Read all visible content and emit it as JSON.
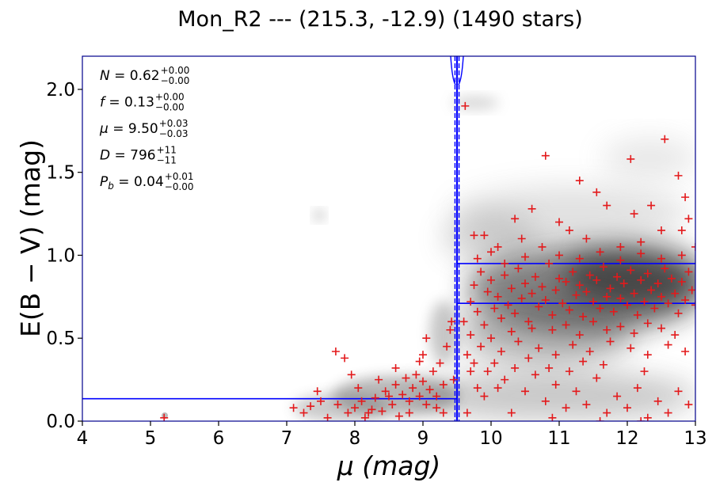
{
  "chart_data": {
    "type": "scatter",
    "title": "Mon_R2 --- (215.3, -12.9) (1490 stars)",
    "xlabel": "μ (mag)",
    "ylabel": "E(B − V) (mag)",
    "xlim": [
      4,
      13
    ],
    "ylim": [
      0,
      2.2
    ],
    "xticks": [
      "4",
      "5",
      "6",
      "7",
      "8",
      "9",
      "10",
      "11",
      "12",
      "13"
    ],
    "yticks": [
      "0.0",
      "0.5",
      "1.0",
      "1.5",
      "2.0"
    ],
    "grid": false,
    "colors": {
      "points": "#e31a1c",
      "model": "#0000ff",
      "density": "#000000"
    },
    "annotations": [
      {
        "label": "N",
        "value": "0.62",
        "sup": "+0.00",
        "sub": "−0.00"
      },
      {
        "label": "f",
        "value": "0.13",
        "sup": "+0.00",
        "sub": "−0.00"
      },
      {
        "label": "μ",
        "value": "9.50",
        "sup": "+0.03",
        "sub": "−0.03"
      },
      {
        "label": "D",
        "value": "796",
        "sup": "+11",
        "sub": "−11"
      },
      {
        "label": "P_b",
        "value": "0.04",
        "sup": "+0.01",
        "sub": "−0.00"
      }
    ],
    "model_lines": {
      "cloud_distance": 9.5,
      "cloud_distance_bounds": [
        9.47,
        9.53
      ],
      "foreground_reddening": 0.135,
      "background_reddening_bounds": [
        0.71,
        0.95
      ]
    },
    "points": [
      [
        5.2,
        0.02
      ],
      [
        7.45,
        0.18
      ],
      [
        7.5,
        0.12
      ],
      [
        7.72,
        0.42
      ],
      [
        7.85,
        0.38
      ],
      [
        7.1,
        0.08
      ],
      [
        7.25,
        0.05
      ],
      [
        7.35,
        0.09
      ],
      [
        7.6,
        0.02
      ],
      [
        7.75,
        0.1
      ],
      [
        7.9,
        0.05
      ],
      [
        8.0,
        0.08
      ],
      [
        8.1,
        0.12
      ],
      [
        8.15,
        0.02
      ],
      [
        8.25,
        0.07
      ],
      [
        8.3,
        0.14
      ],
      [
        8.4,
        0.06
      ],
      [
        8.45,
        0.18
      ],
      [
        8.55,
        0.1
      ],
      [
        8.6,
        0.22
      ],
      [
        8.65,
        0.03
      ],
      [
        8.7,
        0.16
      ],
      [
        8.75,
        0.26
      ],
      [
        8.8,
        0.12
      ],
      [
        8.85,
        0.2
      ],
      [
        8.9,
        0.28
      ],
      [
        8.95,
        0.15
      ],
      [
        9.0,
        0.24
      ],
      [
        9.05,
        0.1
      ],
      [
        9.1,
        0.19
      ],
      [
        9.15,
        0.3
      ],
      [
        9.2,
        0.08
      ],
      [
        9.25,
        0.35
      ],
      [
        9.3,
        0.22
      ],
      [
        9.35,
        0.45
      ],
      [
        9.4,
        0.55
      ],
      [
        9.0,
        0.4
      ],
      [
        9.05,
        0.5
      ],
      [
        8.95,
        0.36
      ],
      [
        9.42,
        0.6
      ],
      [
        8.05,
        0.2
      ],
      [
        8.2,
        0.05
      ],
      [
        8.35,
        0.25
      ],
      [
        8.5,
        0.15
      ],
      [
        8.8,
        0.05
      ],
      [
        9.2,
        0.15
      ],
      [
        9.3,
        0.05
      ],
      [
        9.45,
        0.25
      ],
      [
        7.95,
        0.28
      ],
      [
        8.6,
        0.32
      ],
      [
        9.62,
        1.9
      ],
      [
        10.6,
        1.28
      ],
      [
        10.8,
        1.6
      ],
      [
        11.3,
        1.45
      ],
      [
        11.55,
        1.38
      ],
      [
        12.05,
        1.58
      ],
      [
        12.1,
        1.25
      ],
      [
        12.55,
        1.7
      ],
      [
        12.75,
        1.48
      ],
      [
        12.8,
        1.15
      ],
      [
        12.85,
        1.35
      ],
      [
        12.9,
        1.22
      ],
      [
        13.0,
        1.05
      ],
      [
        10.35,
        1.22
      ],
      [
        10.45,
        1.1
      ],
      [
        10.1,
        1.05
      ],
      [
        9.75,
        1.12
      ],
      [
        9.8,
        0.98
      ],
      [
        9.9,
        1.12
      ],
      [
        10.0,
        1.02
      ],
      [
        10.2,
        0.95
      ],
      [
        11.0,
        1.2
      ],
      [
        11.15,
        1.15
      ],
      [
        11.4,
        1.1
      ],
      [
        11.7,
        1.3
      ],
      [
        12.35,
        1.3
      ],
      [
        12.5,
        1.15
      ],
      [
        11.9,
        1.05
      ],
      [
        12.2,
        1.08
      ],
      [
        10.75,
        1.05
      ],
      [
        9.7,
        0.3
      ],
      [
        9.8,
        0.2
      ],
      [
        9.9,
        0.15
      ],
      [
        10.05,
        0.35
      ],
      [
        10.2,
        0.25
      ],
      [
        10.35,
        0.32
      ],
      [
        10.5,
        0.18
      ],
      [
        10.65,
        0.28
      ],
      [
        10.8,
        0.12
      ],
      [
        10.95,
        0.22
      ],
      [
        11.1,
        0.08
      ],
      [
        11.25,
        0.18
      ],
      [
        11.4,
        0.1
      ],
      [
        11.55,
        0.26
      ],
      [
        11.7,
        0.05
      ],
      [
        11.85,
        0.15
      ],
      [
        12.0,
        0.08
      ],
      [
        12.15,
        0.2
      ],
      [
        12.3,
        0.02
      ],
      [
        12.45,
        0.12
      ],
      [
        12.6,
        0.05
      ],
      [
        12.75,
        0.18
      ],
      [
        12.9,
        0.1
      ],
      [
        10.3,
        0.05
      ],
      [
        10.9,
        0.02
      ],
      [
        11.6,
        0.0
      ],
      [
        12.2,
        0.0
      ],
      [
        9.85,
        0.45
      ],
      [
        10.15,
        0.42
      ],
      [
        10.4,
        0.48
      ],
      [
        10.7,
        0.44
      ],
      [
        10.95,
        0.4
      ],
      [
        11.2,
        0.46
      ],
      [
        11.45,
        0.42
      ],
      [
        11.75,
        0.48
      ],
      [
        12.05,
        0.44
      ],
      [
        12.3,
        0.4
      ],
      [
        12.6,
        0.46
      ],
      [
        12.85,
        0.42
      ],
      [
        9.65,
        0.05
      ],
      [
        9.6,
        0.6
      ],
      [
        9.7,
        0.72
      ],
      [
        9.75,
        0.82
      ],
      [
        9.8,
        0.66
      ],
      [
        9.85,
        0.9
      ],
      [
        9.9,
        0.58
      ],
      [
        9.95,
        0.78
      ],
      [
        10.0,
        0.85
      ],
      [
        10.05,
        0.68
      ],
      [
        10.1,
        0.75
      ],
      [
        10.15,
        0.62
      ],
      [
        10.2,
        0.88
      ],
      [
        10.25,
        0.7
      ],
      [
        10.3,
        0.8
      ],
      [
        10.35,
        0.65
      ],
      [
        10.4,
        0.92
      ],
      [
        10.45,
        0.74
      ],
      [
        10.5,
        0.83
      ],
      [
        10.55,
        0.6
      ],
      [
        10.6,
        0.77
      ],
      [
        10.65,
        0.87
      ],
      [
        10.7,
        0.69
      ],
      [
        10.75,
        0.81
      ],
      [
        10.8,
        0.73
      ],
      [
        10.85,
        0.95
      ],
      [
        10.9,
        0.64
      ],
      [
        10.95,
        0.79
      ],
      [
        11.0,
        0.86
      ],
      [
        11.05,
        0.71
      ],
      [
        11.1,
        0.84
      ],
      [
        11.15,
        0.67
      ],
      [
        11.2,
        0.9
      ],
      [
        11.25,
        0.76
      ],
      [
        11.3,
        0.82
      ],
      [
        11.35,
        0.63
      ],
      [
        11.4,
        0.78
      ],
      [
        11.45,
        0.88
      ],
      [
        11.5,
        0.72
      ],
      [
        11.55,
        0.85
      ],
      [
        11.6,
        0.68
      ],
      [
        11.65,
        0.93
      ],
      [
        11.7,
        0.75
      ],
      [
        11.75,
        0.8
      ],
      [
        11.8,
        0.66
      ],
      [
        11.85,
        0.87
      ],
      [
        11.9,
        0.74
      ],
      [
        11.95,
        0.83
      ],
      [
        12.0,
        0.7
      ],
      [
        12.05,
        0.91
      ],
      [
        12.1,
        0.77
      ],
      [
        12.15,
        0.64
      ],
      [
        12.2,
        0.85
      ],
      [
        12.25,
        0.72
      ],
      [
        12.3,
        0.89
      ],
      [
        12.35,
        0.79
      ],
      [
        12.4,
        0.68
      ],
      [
        12.45,
        0.83
      ],
      [
        12.5,
        0.75
      ],
      [
        12.55,
        0.92
      ],
      [
        12.6,
        0.71
      ],
      [
        12.65,
        0.86
      ],
      [
        12.7,
        0.77
      ],
      [
        12.75,
        0.65
      ],
      [
        12.8,
        0.84
      ],
      [
        12.85,
        0.73
      ],
      [
        12.9,
        0.9
      ],
      [
        12.95,
        0.79
      ],
      [
        13.0,
        0.7
      ],
      [
        10.9,
        0.55
      ],
      [
        11.1,
        0.58
      ],
      [
        11.3,
        0.52
      ],
      [
        11.5,
        0.6
      ],
      [
        11.7,
        0.55
      ],
      [
        11.9,
        0.57
      ],
      [
        12.1,
        0.53
      ],
      [
        12.3,
        0.59
      ],
      [
        12.5,
        0.56
      ],
      [
        12.7,
        0.52
      ],
      [
        10.6,
        0.56
      ],
      [
        10.3,
        0.54
      ],
      [
        10.0,
        0.5
      ],
      [
        9.7,
        0.52
      ],
      [
        11.0,
        1.0
      ],
      [
        11.3,
        0.98
      ],
      [
        11.6,
        1.02
      ],
      [
        11.9,
        0.97
      ],
      [
        12.2,
        1.01
      ],
      [
        12.5,
        0.98
      ],
      [
        12.8,
        1.0
      ],
      [
        10.5,
        0.99
      ],
      [
        9.65,
        0.4
      ],
      [
        9.75,
        0.35
      ],
      [
        9.95,
        0.3
      ],
      [
        10.1,
        0.2
      ],
      [
        10.55,
        0.38
      ],
      [
        10.85,
        0.32
      ],
      [
        11.15,
        0.3
      ],
      [
        11.35,
        0.36
      ],
      [
        11.65,
        0.34
      ],
      [
        12.25,
        0.3
      ]
    ]
  }
}
